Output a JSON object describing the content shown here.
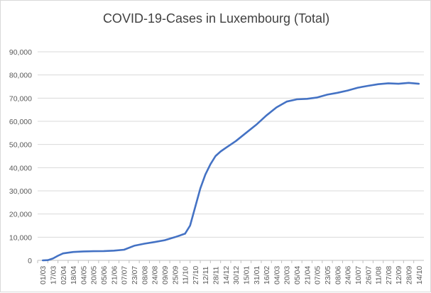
{
  "chart_data": {
    "type": "line",
    "title": "COVID-19-Cases in Luxembourg (Total)",
    "xlabel": "",
    "ylabel": "",
    "ylim": [
      0,
      90000
    ],
    "y_ticks": [
      "0",
      "10,000",
      "20,000",
      "30,000",
      "40,000",
      "50,000",
      "60,000",
      "70,000",
      "80,000",
      "90,000"
    ],
    "x_tick_labels": [
      "01/03",
      "17/03",
      "02/04",
      "18/04",
      "04/05",
      "20/05",
      "05/06",
      "21/06",
      "07/07",
      "23/07",
      "08/08",
      "24/08",
      "09/09",
      "25/09",
      "11/10",
      "27/10",
      "12/11",
      "28/11",
      "14/12",
      "30/12",
      "15/01",
      "31/01",
      "16/02",
      "04/03",
      "20/03",
      "05/04",
      "21/04",
      "07/05",
      "23/05",
      "08/06",
      "24/06",
      "10/07",
      "26/07",
      "11/08",
      "27/08",
      "12/09",
      "28/09",
      "14/10"
    ],
    "grid": true,
    "legend": "none",
    "line_color": "#4472c4",
    "series": [
      {
        "x": [
          "01/03",
          "09/03",
          "17/03",
          "25/03",
          "02/04",
          "10/04",
          "18/04",
          "26/04",
          "04/05",
          "20/05",
          "05/06",
          "21/06",
          "07/07",
          "23/07",
          "08/08",
          "24/08",
          "09/09",
          "25/09",
          "11/10",
          "19/10",
          "27/10",
          "04/11",
          "12/11",
          "20/11",
          "28/11",
          "06/12",
          "14/12",
          "22/12",
          "30/12",
          "15/01",
          "31/01",
          "16/02",
          "04/03",
          "20/03",
          "05/04",
          "21/04",
          "07/05",
          "23/05",
          "08/06",
          "24/06",
          "10/07",
          "26/07",
          "11/08",
          "27/08",
          "12/09",
          "28/09",
          "14/10"
        ],
        "values": [
          0,
          100,
          800,
          2000,
          3000,
          3300,
          3600,
          3750,
          3850,
          3950,
          4000,
          4200,
          4600,
          6300,
          7200,
          7900,
          8700,
          10000,
          11500,
          15000,
          23000,
          31000,
          37000,
          41500,
          45000,
          47000,
          48500,
          50000,
          51500,
          55000,
          58500,
          62500,
          66000,
          68500,
          69500,
          69700,
          70300,
          71500,
          72300,
          73300,
          74500,
          75300,
          76000,
          76400,
          76200,
          76600,
          76200
        ]
      }
    ]
  }
}
